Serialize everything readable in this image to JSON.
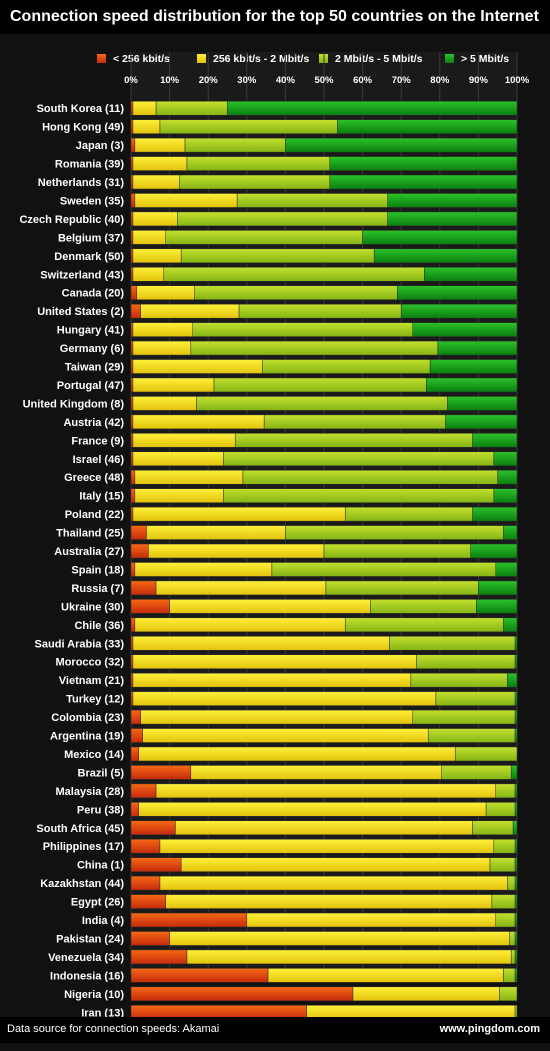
{
  "title": "Connection speed distribution for the top 50 countries on the Internet",
  "footer": {
    "source": "Data source for connection speeds: Akamai",
    "site": "www.pingdom.com"
  },
  "colors": {
    "background": "#111111",
    "lt256": "#e8501a",
    "k256to2m": "#f2de1a",
    "m2to5": "#9fcc1f",
    "gt5": "#139e18"
  },
  "chart_data": {
    "type": "bar",
    "orientation": "horizontal",
    "stacked": true,
    "normalized_percent": true,
    "xlim": [
      0,
      100
    ],
    "x_ticks": [
      "0%",
      "10%",
      "20%",
      "30%",
      "40%",
      "50%",
      "60%",
      "70%",
      "80%",
      "90%",
      "100%"
    ],
    "legend_position": "top",
    "grid": true,
    "categories": [
      "South Korea (11)",
      "Hong Kong (49)",
      "Japan (3)",
      "Romania (39)",
      "Netherlands (31)",
      "Sweden (35)",
      "Czech Republic (40)",
      "Belgium (37)",
      "Denmark (50)",
      "Switzerland (43)",
      "Canada (20)",
      "United States (2)",
      "Hungary (41)",
      "Germany (6)",
      "Taiwan (29)",
      "Portugal (47)",
      "United Kingdom (8)",
      "Austria (42)",
      "France (9)",
      "Israel (46)",
      "Greece (48)",
      "Italy (15)",
      "Poland (22)",
      "Thailand (25)",
      "Australia (27)",
      "Spain (18)",
      "Russia (7)",
      "Ukraine (30)",
      "Chile (36)",
      "Saudi Arabia (33)",
      "Morocco (32)",
      "Vietnam (21)",
      "Turkey (12)",
      "Colombia (23)",
      "Argentina (19)",
      "Mexico (14)",
      "Brazil (5)",
      "Malaysia (28)",
      "Peru (38)",
      "South Africa (45)",
      "Philippines (17)",
      "China (1)",
      "Kazakhstan (44)",
      "Egypt (26)",
      "India (4)",
      "Pakistan (24)",
      "Venezuela (34)",
      "Indonesia (16)",
      "Nigeria (10)",
      "Iran (13)"
    ],
    "series": [
      {
        "name": "< 256 kbit/s",
        "color": "#e8501a",
        "values": [
          0.5,
          0.5,
          1,
          0.5,
          0.5,
          1,
          0.5,
          0.5,
          0.5,
          0.5,
          1.5,
          2.5,
          0.5,
          0.5,
          0.5,
          0.5,
          0.5,
          0.5,
          0.5,
          0.5,
          1,
          1,
          0.5,
          4,
          4.5,
          1,
          6.5,
          10,
          1,
          0.5,
          0.5,
          0.5,
          0.5,
          2.5,
          3,
          2,
          15.5,
          6.5,
          2,
          11.5,
          7.5,
          13,
          7.5,
          9,
          30,
          10,
          14.5,
          35.5,
          57.5,
          45.5
        ]
      },
      {
        "name": "256 kbit/s - 2 Mbit/s",
        "color": "#f2de1a",
        "values": [
          6,
          7,
          13,
          14,
          12,
          26.5,
          11.5,
          8.5,
          12.5,
          8,
          15,
          25.5,
          15.5,
          15,
          33.5,
          21,
          16.5,
          34,
          26.5,
          23.5,
          28,
          23,
          55,
          36,
          45.5,
          35.5,
          44,
          52,
          54.5,
          66.5,
          73.5,
          72,
          78.5,
          70.5,
          74,
          82,
          65,
          88,
          90,
          77,
          86.5,
          80,
          90,
          84.5,
          64.5,
          88,
          84,
          61,
          38,
          54
        ]
      },
      {
        "name": "2 Mbit/s - 5 Mbit/s",
        "color": "#9fcc1f",
        "values": [
          18.5,
          46,
          26,
          37,
          39,
          39,
          54.5,
          51,
          50,
          67.5,
          52.5,
          42,
          57,
          64,
          43.5,
          55,
          65,
          47,
          61.5,
          70,
          66,
          70,
          33,
          56.5,
          38,
          58,
          39.5,
          27.5,
          41,
          32.5,
          25.5,
          25,
          20.5,
          26.5,
          22.5,
          16,
          18,
          5,
          7.5,
          10.5,
          5.5,
          6.5,
          2,
          6,
          5,
          1.5,
          1,
          3,
          4.5,
          0.5
        ]
      },
      {
        "name": "> 5 Mbit/s",
        "color": "#139e18",
        "values": [
          75,
          46.5,
          60,
          48.5,
          48.5,
          33.5,
          33.5,
          40,
          37,
          24,
          31,
          30,
          27,
          20.5,
          22.5,
          23.5,
          18,
          18.5,
          11.5,
          6,
          5,
          6,
          11.5,
          3.5,
          12,
          5.5,
          10,
          10.5,
          3.5,
          0.5,
          0.5,
          2.5,
          0.5,
          0.5,
          0.5,
          0,
          1.5,
          0.5,
          0.5,
          1,
          0.5,
          0.5,
          0.5,
          0.5,
          0.5,
          0.5,
          0.5,
          0.5,
          0,
          0
        ]
      }
    ]
  }
}
